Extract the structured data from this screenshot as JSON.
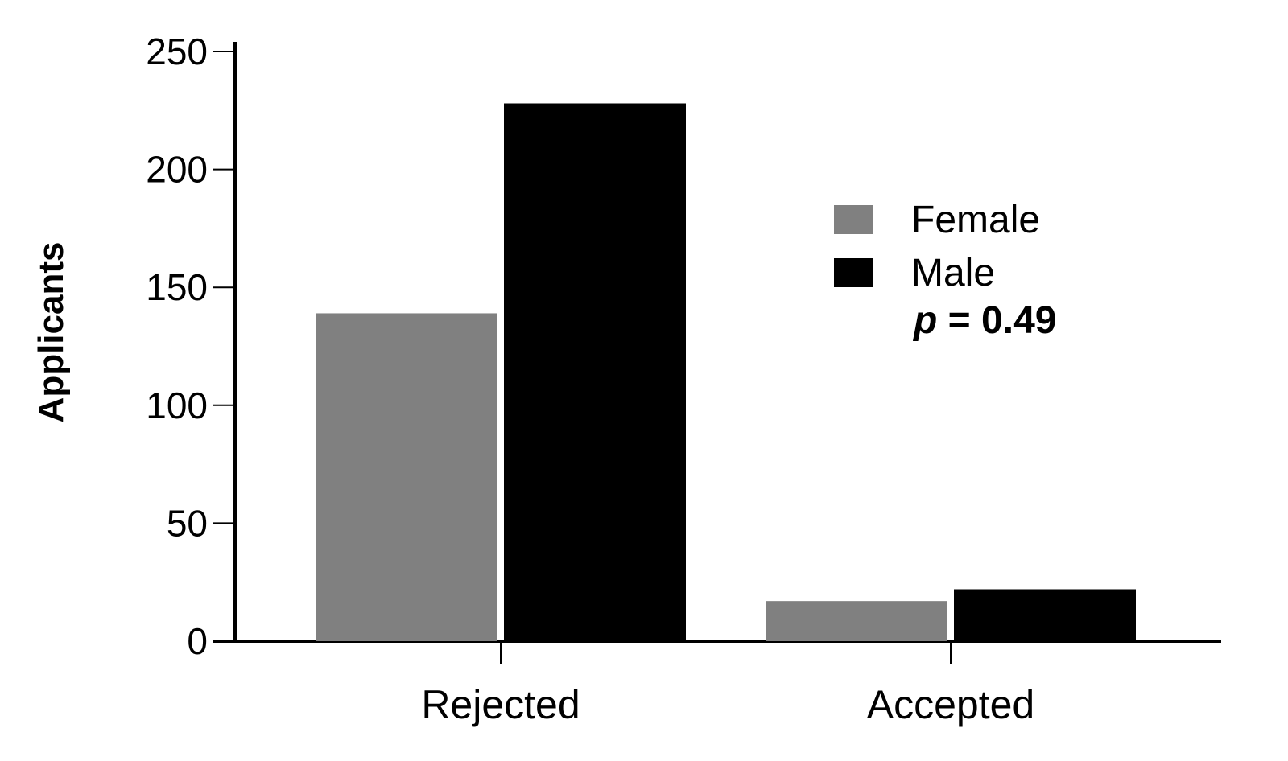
{
  "chart_data": {
    "type": "bar",
    "categories": [
      "Rejected",
      "Accepted"
    ],
    "series": [
      {
        "name": "Female",
        "values": [
          139,
          17
        ],
        "color": "#808080"
      },
      {
        "name": "Male",
        "values": [
          228,
          22
        ],
        "color": "#000000"
      }
    ],
    "ylabel": "Applicants",
    "xlabel": "",
    "ylim": [
      0,
      250
    ],
    "yticks": [
      0,
      50,
      100,
      150,
      200,
      250
    ],
    "grid": false,
    "legend_position": "top-right",
    "annotation": {
      "prefix": "p",
      "text": " = 0.49"
    }
  }
}
